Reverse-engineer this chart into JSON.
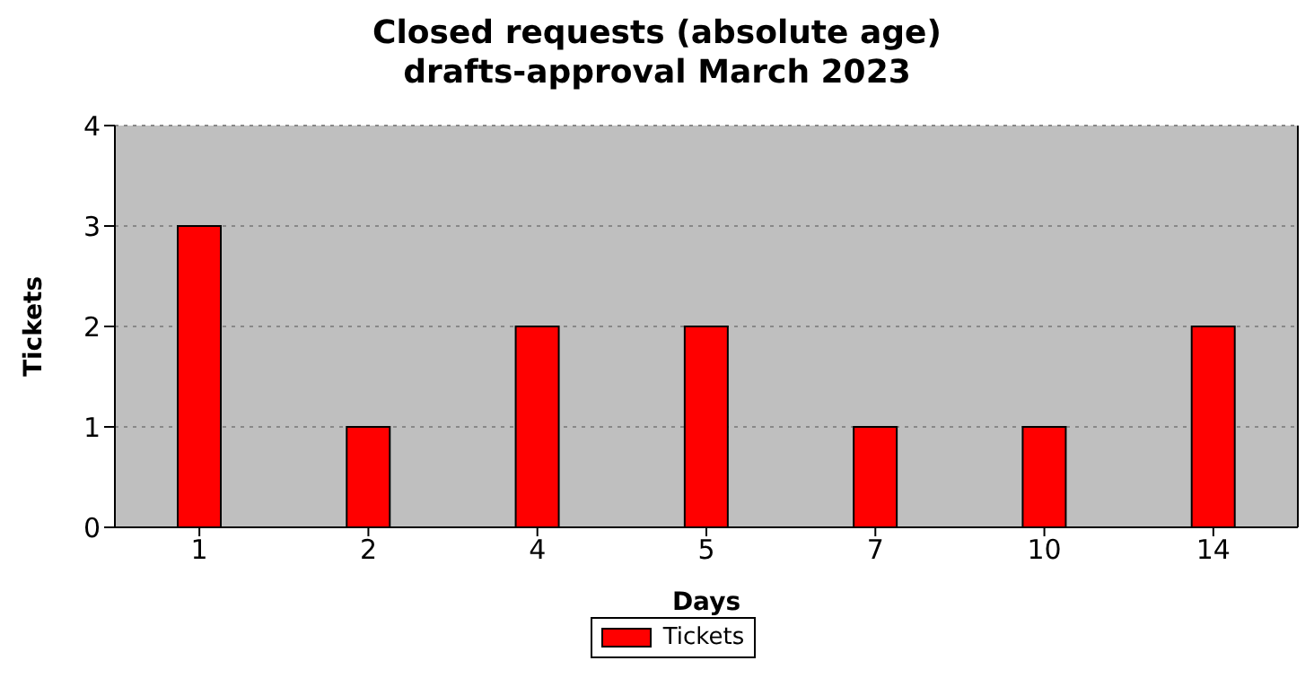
{
  "chart_data": {
    "type": "bar",
    "title": "Closed requests (absolute age)\ndrafts-approval March 2023",
    "xlabel": "Days",
    "ylabel": "Tickets",
    "categories": [
      "1",
      "2",
      "4",
      "5",
      "7",
      "10",
      "14"
    ],
    "series": [
      {
        "name": "Tickets",
        "color": "#ff0000",
        "values": [
          3,
          1,
          2,
          2,
          1,
          1,
          2
        ]
      }
    ],
    "ylim": [
      0,
      4
    ],
    "yticks": [
      0,
      1,
      2,
      3,
      4
    ],
    "grid": "y",
    "legend": "bottom"
  }
}
